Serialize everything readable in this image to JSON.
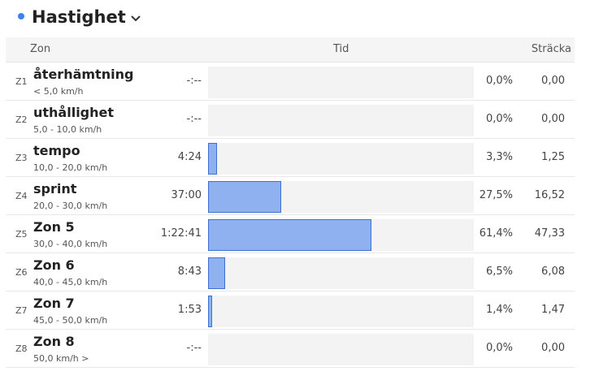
{
  "header": {
    "title": "Hastighet",
    "accent_color": "#3b82f6",
    "dropdown_icon": "chevron-down-icon"
  },
  "table": {
    "columns": {
      "zone": "Zon",
      "time": "Tid",
      "distance": "Sträcka"
    },
    "rows": [
      {
        "code": "Z1",
        "name": "återhämtning",
        "range": "<  5,0 km/h",
        "time": "-:--",
        "percent": "0,0%",
        "distance": "0,00",
        "fraction": 0.0
      },
      {
        "code": "Z2",
        "name": "uthållighet",
        "range": "5,0 - 10,0 km/h",
        "time": "-:--",
        "percent": "0,0%",
        "distance": "0,00",
        "fraction": 0.0
      },
      {
        "code": "Z3",
        "name": "tempo",
        "range": "10,0 - 20,0 km/h",
        "time": "4:24",
        "percent": "3,3%",
        "distance": "1,25",
        "fraction": 0.033
      },
      {
        "code": "Z4",
        "name": "sprint",
        "range": "20,0 - 30,0 km/h",
        "time": "37:00",
        "percent": "27,5%",
        "distance": "16,52",
        "fraction": 0.275
      },
      {
        "code": "Z5",
        "name": "Zon 5",
        "range": "30,0 - 40,0 km/h",
        "time": "1:22:41",
        "percent": "61,4%",
        "distance": "47,33",
        "fraction": 0.614
      },
      {
        "code": "Z6",
        "name": "Zon 6",
        "range": "40,0 - 45,0 km/h",
        "time": "8:43",
        "percent": "6,5%",
        "distance": "6,08",
        "fraction": 0.065
      },
      {
        "code": "Z7",
        "name": "Zon 7",
        "range": "45,0 - 50,0 km/h",
        "time": "1:53",
        "percent": "1,4%",
        "distance": "1,47",
        "fraction": 0.014
      },
      {
        "code": "Z8",
        "name": "Zon 8",
        "range": "50,0 km/h  >",
        "time": "-:--",
        "percent": "0,0%",
        "distance": "0,00",
        "fraction": 0.0
      }
    ],
    "bar_fill": "#8fb1f0",
    "bar_border": "#3f6fd1"
  }
}
